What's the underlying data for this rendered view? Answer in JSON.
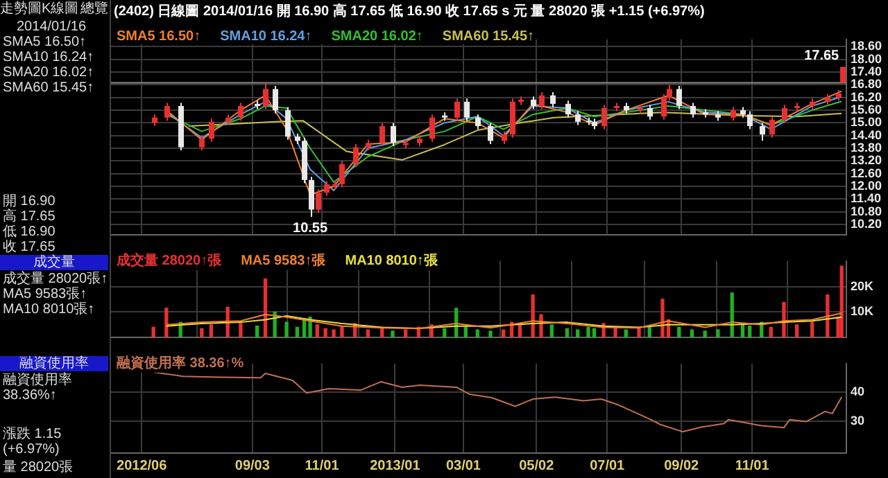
{
  "chart_data": [
    {
      "type": "other",
      "annotations": [
        "走勢圖",
        "K線圖",
        "總覽",
        "2014/01/16",
        "SMA5 16.50↑",
        "SMA10 16.24↑",
        "SMA20 16.02↑",
        "SMA60 15.45↑",
        "開 16.90",
        "高 17.65",
        "低 16.90",
        "收 17.65",
        "成交量",
        "成交量 28020張↑",
        "MA5 9583張↑",
        "MA10 8010張↑",
        "融資使用率",
        "融資使用率 38.36%↑",
        "漲跌 1.15 (+6.97%)",
        "量 28020張"
      ]
    },
    {
      "type": "candlestick",
      "title": "(2402) 日線圖 2014/01/16 開 16.90 高 17.65 低 16.90 收 17.65 s 元 量 28020 張 +1.15 (+6.97%)",
      "x": [
        "2012-06-11",
        "2012-06-22",
        "2012-07-04",
        "2012-07-22",
        "2012-07-30",
        "2012-08-13",
        "2012-08-24",
        "2012-09-07",
        "2012-09-14",
        "2012-09-22",
        "2012-10-02",
        "2012-10-11",
        "2012-10-17",
        "2012-10-22",
        "2012-10-28",
        "2012-11-04",
        "2012-11-11",
        "2012-11-18",
        "2012-11-29",
        "2012-12-10",
        "2012-12-22",
        "2012-12-31",
        "2013-01-11",
        "2013-01-22",
        "2013-02-02",
        "2013-02-13",
        "2013-02-23",
        "2013-03-03",
        "2013-03-13",
        "2013-03-24",
        "2013-04-04",
        "2013-04-11",
        "2013-04-18",
        "2013-04-29",
        "2013-05-06",
        "2013-05-15",
        "2013-05-28",
        "2013-06-06",
        "2013-06-15",
        "2013-06-20",
        "2013-06-28",
        "2013-07-08",
        "2013-07-17",
        "2013-07-28",
        "2013-08-06",
        "2013-08-17",
        "2013-08-22",
        "2013-08-31",
        "2013-09-11",
        "2013-09-22",
        "2013-10-03",
        "2013-10-15",
        "2013-10-24",
        "2013-10-30",
        "2013-11-09",
        "2013-11-17",
        "2013-11-28",
        "2013-12-09",
        "2013-12-22",
        "2014-01-04",
        "2014-01-13",
        "2014-01-16"
      ],
      "ohlc": [
        [
          15.0,
          15.4,
          14.85,
          15.25
        ],
        [
          15.25,
          15.95,
          15.1,
          15.8
        ],
        [
          15.8,
          15.95,
          13.7,
          13.85
        ],
        [
          13.85,
          14.4,
          13.7,
          14.25
        ],
        [
          14.25,
          15.2,
          14.1,
          15.05
        ],
        [
          15.05,
          15.4,
          14.9,
          15.25
        ],
        [
          15.25,
          15.95,
          15.1,
          15.8
        ],
        [
          15.9,
          16.05,
          15.65,
          15.8
        ],
        [
          15.8,
          16.9,
          15.65,
          16.6
        ],
        [
          16.6,
          16.75,
          15.45,
          15.6
        ],
        [
          15.6,
          15.75,
          14.2,
          14.35
        ],
        [
          14.35,
          14.5,
          14.0,
          14.15
        ],
        [
          14.15,
          14.3,
          12.15,
          12.3
        ],
        [
          12.3,
          12.45,
          10.55,
          10.9
        ],
        [
          10.9,
          11.85,
          10.75,
          11.7
        ],
        [
          11.7,
          12.25,
          11.55,
          12.1
        ],
        [
          12.0,
          12.25,
          11.85,
          12.1
        ],
        [
          12.1,
          13.2,
          11.95,
          13.05
        ],
        [
          13.05,
          14.0,
          12.9,
          13.85
        ],
        [
          13.85,
          14.2,
          13.7,
          14.05
        ],
        [
          14.05,
          15.0,
          13.9,
          14.85
        ],
        [
          14.85,
          15.0,
          13.9,
          14.05
        ],
        [
          13.95,
          14.2,
          13.8,
          14.05
        ],
        [
          14.05,
          14.4,
          13.9,
          14.25
        ],
        [
          14.25,
          15.4,
          14.1,
          15.25
        ],
        [
          15.35,
          15.5,
          15.1,
          15.25
        ],
        [
          15.25,
          16.15,
          15.1,
          16.0
        ],
        [
          16.0,
          16.15,
          15.1,
          15.25
        ],
        [
          15.25,
          15.4,
          14.7,
          14.85
        ],
        [
          14.85,
          15.0,
          14.0,
          14.15
        ],
        [
          14.15,
          14.6,
          14.0,
          14.45
        ],
        [
          14.45,
          16.15,
          14.3,
          16.0
        ],
        [
          16.0,
          16.25,
          15.85,
          16.1
        ],
        [
          16.1,
          16.25,
          15.65,
          15.8
        ],
        [
          15.8,
          16.45,
          15.65,
          16.3
        ],
        [
          16.3,
          16.45,
          15.75,
          15.9
        ],
        [
          15.9,
          16.05,
          15.25,
          15.4
        ],
        [
          15.4,
          15.55,
          14.9,
          15.05
        ],
        [
          15.1,
          15.25,
          14.9,
          15.05
        ],
        [
          15.05,
          15.2,
          14.7,
          14.85
        ],
        [
          14.85,
          15.85,
          14.7,
          15.7
        ],
        [
          15.7,
          15.95,
          15.55,
          15.8
        ],
        [
          15.8,
          15.95,
          15.45,
          15.6
        ],
        [
          15.6,
          15.85,
          15.45,
          15.7
        ],
        [
          15.7,
          15.85,
          15.15,
          15.3
        ],
        [
          15.3,
          16.35,
          15.15,
          16.2
        ],
        [
          16.2,
          16.8,
          16.05,
          16.6
        ],
        [
          16.6,
          16.75,
          15.65,
          15.8
        ],
        [
          15.8,
          15.95,
          15.25,
          15.4
        ],
        [
          15.5,
          15.65,
          15.25,
          15.4
        ],
        [
          15.4,
          15.55,
          15.1,
          15.25
        ],
        [
          15.25,
          15.75,
          15.1,
          15.6
        ],
        [
          15.6,
          15.75,
          15.25,
          15.4
        ],
        [
          15.4,
          15.55,
          14.7,
          14.85
        ],
        [
          14.85,
          15.0,
          14.15,
          14.45
        ],
        [
          14.45,
          15.3,
          14.3,
          15.15
        ],
        [
          15.15,
          15.85,
          15.0,
          15.7
        ],
        [
          15.7,
          15.95,
          15.55,
          15.8
        ],
        [
          15.8,
          16.15,
          15.65,
          16.0
        ],
        [
          16.0,
          16.35,
          15.85,
          16.2
        ],
        [
          16.2,
          16.55,
          16.05,
          16.4
        ],
        [
          16.9,
          17.65,
          16.9,
          17.65
        ]
      ],
      "colors": [
        "#e83030",
        "#e83030",
        "#e8e8e8",
        "#e83030",
        "#e83030",
        "#e83030",
        "#e83030",
        "#e8e8e8",
        "#e83030",
        "#e8e8e8",
        "#e8e8e8",
        "#e8e8e8",
        "#e8e8e8",
        "#e8e8e8",
        "#e83030",
        "#e83030",
        "#e83030",
        "#e83030",
        "#e83030",
        "#e83030",
        "#e83030",
        "#e8e8e8",
        "#e83030",
        "#e83030",
        "#e83030",
        "#e8e8e8",
        "#e83030",
        "#e8e8e8",
        "#e8e8e8",
        "#e8e8e8",
        "#e83030",
        "#e83030",
        "#e83030",
        "#e8e8e8",
        "#e83030",
        "#e8e8e8",
        "#e8e8e8",
        "#e8e8e8",
        "#e8e8e8",
        "#e8e8e8",
        "#e83030",
        "#e83030",
        "#e8e8e8",
        "#e83030",
        "#e8e8e8",
        "#e83030",
        "#e83030",
        "#e8e8e8",
        "#e8e8e8",
        "#e8e8e8",
        "#e8e8e8",
        "#e83030",
        "#e8e8e8",
        "#e8e8e8",
        "#e8e8e8",
        "#e83030",
        "#e83030",
        "#e83030",
        "#e83030",
        "#e83030",
        "#e83030",
        "#e83030"
      ],
      "xlim": [
        "2012-05-06",
        "2014-01-20"
      ],
      "xticks": [
        {
          "value": "2012-06-01",
          "label": null
        },
        {
          "value": "2012-09-03",
          "label": null
        },
        {
          "value": "2012-11-01",
          "label": null
        },
        {
          "value": "2013-01-02",
          "label": null
        },
        {
          "value": "2013-03-01",
          "label": null
        },
        {
          "value": "2013-05-02",
          "label": null
        },
        {
          "value": "2013-07-01",
          "label": null
        },
        {
          "value": "2013-09-02",
          "label": null
        },
        {
          "value": "2013-11-01",
          "label": null
        }
      ],
      "series": [
        {
          "name": "SMA5 16.50↑",
          "type": "line",
          "color": "#f08030",
          "x": [
            "2012-06-22",
            "2012-07-22",
            "2012-08-24",
            "2012-09-14",
            "2012-10-02",
            "2012-10-22",
            "2012-11-11",
            "2012-12-10",
            "2013-01-11",
            "2013-02-13",
            "2013-03-13",
            "2013-04-04",
            "2013-04-29",
            "2013-05-28",
            "2013-06-20",
            "2013-07-17",
            "2013-08-22",
            "2013-09-22",
            "2013-10-24",
            "2013-11-17",
            "2013-12-22",
            "2014-01-16"
          ],
          "values": [
            15.6,
            14.2,
            15.6,
            16.3,
            14.7,
            11.6,
            12.0,
            14.0,
            14.1,
            15.2,
            15.0,
            14.3,
            15.9,
            15.5,
            14.9,
            15.6,
            16.3,
            15.4,
            15.4,
            14.9,
            15.9,
            16.5
          ]
        },
        {
          "name": "SMA10 16.24↑",
          "type": "line",
          "color": "#60a0e0",
          "x": [
            "2012-06-22",
            "2012-07-22",
            "2012-08-24",
            "2012-09-14",
            "2012-10-02",
            "2012-10-22",
            "2012-11-11",
            "2012-12-10",
            "2013-01-11",
            "2013-02-13",
            "2013-03-13",
            "2013-04-04",
            "2013-04-29",
            "2013-05-28",
            "2013-06-20",
            "2013-07-17",
            "2013-08-22",
            "2013-09-22",
            "2013-10-24",
            "2013-11-17",
            "2013-12-22",
            "2014-01-16"
          ],
          "values": [
            15.5,
            14.3,
            15.4,
            16.0,
            15.2,
            12.8,
            11.8,
            13.8,
            14.2,
            15.0,
            15.3,
            14.4,
            15.8,
            15.7,
            15.0,
            15.6,
            16.0,
            15.5,
            15.4,
            14.7,
            15.8,
            16.24
          ]
        },
        {
          "name": "SMA20 16.02↑",
          "type": "line",
          "color": "#30c030",
          "x": [
            "2012-06-22",
            "2012-07-22",
            "2012-08-24",
            "2012-09-14",
            "2012-10-02",
            "2012-10-22",
            "2012-11-11",
            "2012-12-10",
            "2013-01-11",
            "2013-02-13",
            "2013-03-13",
            "2013-04-04",
            "2013-04-29",
            "2013-05-28",
            "2013-06-20",
            "2013-07-17",
            "2013-08-22",
            "2013-09-22",
            "2013-10-24",
            "2013-11-17",
            "2013-12-22",
            "2014-01-16"
          ],
          "values": [
            15.4,
            14.6,
            15.2,
            15.8,
            15.7,
            13.8,
            12.2,
            13.4,
            14.2,
            14.6,
            15.3,
            14.7,
            15.4,
            15.7,
            15.3,
            15.5,
            15.8,
            15.6,
            15.4,
            14.9,
            15.6,
            16.02
          ]
        },
        {
          "name": "SMA60 15.45↑",
          "type": "line",
          "color": "#c8c050",
          "x": [
            "2012-07-11",
            "2012-08-17",
            "2012-09-22",
            "2012-10-16",
            "2012-11-22",
            "2013-01-08",
            "2013-02-12",
            "2013-03-13",
            "2013-04-12",
            "2013-05-17",
            "2013-08-17",
            "2013-10-21",
            "2013-12-09",
            "2014-01-16"
          ],
          "values": [
            14.85,
            14.95,
            15.05,
            15.1,
            13.65,
            13.25,
            13.95,
            14.65,
            14.95,
            15.25,
            15.5,
            15.35,
            15.3,
            15.45
          ]
        }
      ],
      "ylim": [
        9.7,
        18.95
      ],
      "yticks": [
        {
          "value": 10.2,
          "label": "10.20"
        },
        {
          "value": 10.8,
          "label": "10.80"
        },
        {
          "value": 11.4,
          "label": "11.40"
        },
        {
          "value": 12,
          "label": "12.00"
        },
        {
          "value": 12.6,
          "label": "12.60"
        },
        {
          "value": 13.2,
          "label": "13.20"
        },
        {
          "value": 13.8,
          "label": "13.80"
        },
        {
          "value": 14.4,
          "label": "14.40"
        },
        {
          "value": 15,
          "label": "15.00"
        },
        {
          "value": 15.6,
          "label": "15.60"
        },
        {
          "value": 16.2,
          "label": "16.20"
        },
        {
          "value": 16.8,
          "label": "16.80"
        },
        {
          "value": 17.4,
          "label": "17.40"
        },
        {
          "value": 18,
          "label": "18.00"
        },
        {
          "value": 18.6,
          "label": "18.60"
        }
      ],
      "grid": true,
      "legend": "top left",
      "tick_labels": "y",
      "ref_lines": [
        {
          "axis": "y",
          "value": 16.9,
          "color": "#909090"
        }
      ],
      "annotations": [
        {
          "text": "10.55",
          "x": "2012-10-22",
          "y": 10.55
        },
        {
          "text": "17.65",
          "x": "2014-01-16",
          "y": 17.65
        }
      ]
    },
    {
      "type": "bar",
      "x": [
        "2012-06-11",
        "2012-06-22",
        "2012-07-04",
        "2012-07-22",
        "2012-07-30",
        "2012-08-13",
        "2012-08-24",
        "2012-09-07",
        "2012-09-14",
        "2012-09-22",
        "2012-10-02",
        "2012-10-11",
        "2012-10-17",
        "2012-10-22",
        "2012-10-28",
        "2012-11-04",
        "2012-11-11",
        "2012-11-18",
        "2012-11-29",
        "2012-12-10",
        "2012-12-22",
        "2012-12-31",
        "2013-01-11",
        "2013-01-22",
        "2013-02-02",
        "2013-02-13",
        "2013-02-23",
        "2013-03-03",
        "2013-03-13",
        "2013-03-24",
        "2013-04-04",
        "2013-04-11",
        "2013-04-18",
        "2013-04-29",
        "2013-05-06",
        "2013-05-15",
        "2013-05-28",
        "2013-06-06",
        "2013-06-15",
        "2013-06-20",
        "2013-06-28",
        "2013-07-08",
        "2013-07-17",
        "2013-07-28",
        "2013-08-06",
        "2013-08-17",
        "2013-08-22",
        "2013-08-31",
        "2013-09-11",
        "2013-09-22",
        "2013-10-03",
        "2013-10-15",
        "2013-10-24",
        "2013-10-30",
        "2013-11-09",
        "2013-11-17",
        "2013-11-28",
        "2013-12-09",
        "2013-12-22",
        "2014-01-04",
        "2014-01-13",
        "2014-01-16"
      ],
      "series": [
        {
          "name": "成交量 28020↑張",
          "type": "bar",
          "values": [
            4000,
            11500,
            6000,
            3500,
            5000,
            11900,
            5500,
            4500,
            23000,
            10000,
            6000,
            4000,
            7000,
            8000,
            5000,
            3500,
            3000,
            4500,
            5500,
            3000,
            4000,
            2500,
            3000,
            4000,
            5000,
            3500,
            11500,
            4000,
            3000,
            2500,
            3000,
            6000,
            5000,
            16700,
            9000,
            5000,
            3500,
            3000,
            4000,
            3500,
            5500,
            4000,
            3000,
            3500,
            4000,
            15000,
            7000,
            4000,
            3000,
            2500,
            3000,
            17500,
            5000,
            4500,
            6000,
            4000,
            13700,
            5000,
            6000,
            16700,
            8000,
            28020
          ],
          "colors": [
            "#e83030",
            "#e83030",
            "#20b020",
            "#e83030",
            "#e83030",
            "#e83030",
            "#e83030",
            "#20b020",
            "#e83030",
            "#20b020",
            "#20b020",
            "#20b020",
            "#20b020",
            "#20b020",
            "#e83030",
            "#e83030",
            "#e83030",
            "#e83030",
            "#e83030",
            "#e83030",
            "#e83030",
            "#20b020",
            "#e83030",
            "#e83030",
            "#e83030",
            "#20b020",
            "#20b020",
            "#20b020",
            "#20b020",
            "#20b020",
            "#e83030",
            "#e83030",
            "#e83030",
            "#e83030",
            "#e83030",
            "#20b020",
            "#20b020",
            "#20b020",
            "#20b020",
            "#20b020",
            "#e83030",
            "#e83030",
            "#20b020",
            "#e83030",
            "#20b020",
            "#e83030",
            "#e83030",
            "#20b020",
            "#20b020",
            "#20b020",
            "#20b020",
            "#20b020",
            "#20b020",
            "#20b020",
            "#20b020",
            "#e83030",
            "#e83030",
            "#e83030",
            "#e83030",
            "#e83030",
            "#e83030",
            "#e83030"
          ]
        },
        {
          "name": "MA5 9583↑張",
          "type": "line",
          "color": "#f08030",
          "x": [
            "2012-06-22",
            "2012-07-22",
            "2012-08-24",
            "2012-09-14",
            "2012-10-02",
            "2012-10-22",
            "2012-11-18",
            "2012-12-22",
            "2013-01-22",
            "2013-02-23",
            "2013-03-24",
            "2013-04-29",
            "2013-05-28",
            "2013-06-28",
            "2013-07-28",
            "2013-08-22",
            "2013-09-22",
            "2013-10-15",
            "2013-11-09",
            "2013-11-28",
            "2013-12-22",
            "2014-01-16"
          ],
          "values": [
            5000,
            6000,
            6500,
            9000,
            8000,
            6500,
            4500,
            3800,
            3500,
            5500,
            3800,
            6500,
            5500,
            4000,
            3800,
            6500,
            4000,
            6000,
            5000,
            6500,
            7000,
            9583
          ]
        },
        {
          "name": "MA10 8010↑張",
          "type": "line",
          "color": "#e8e040",
          "x": [
            "2012-06-22",
            "2012-07-22",
            "2012-08-24",
            "2012-09-14",
            "2012-10-02",
            "2012-10-22",
            "2012-11-18",
            "2012-12-22",
            "2013-01-22",
            "2013-02-23",
            "2013-03-24",
            "2013-04-29",
            "2013-05-28",
            "2013-06-28",
            "2013-07-28",
            "2013-08-22",
            "2013-09-22",
            "2013-10-15",
            "2013-11-09",
            "2013-11-28",
            "2013-12-22",
            "2014-01-16"
          ],
          "values": [
            4500,
            5500,
            6000,
            7000,
            8500,
            7000,
            5500,
            4000,
            3600,
            4500,
            4500,
            5500,
            6000,
            4500,
            4000,
            5000,
            5000,
            5000,
            5500,
            6000,
            6500,
            8010
          ]
        }
      ],
      "xlim": [
        "2012-05-06",
        "2014-01-20"
      ],
      "xticks": [
        {
          "value": "2012-06-01",
          "label": null
        },
        {
          "value": "2012-09-03",
          "label": null
        },
        {
          "value": "2012-11-01",
          "label": null
        },
        {
          "value": "2013-01-02",
          "label": null
        },
        {
          "value": "2013-03-01",
          "label": null
        },
        {
          "value": "2013-05-02",
          "label": null
        },
        {
          "value": "2013-07-01",
          "label": null
        },
        {
          "value": "2013-09-02",
          "label": null
        },
        {
          "value": "2013-11-01",
          "label": null
        }
      ],
      "ylim": [
        0,
        30000
      ],
      "yticks": [
        {
          "value": 10000,
          "label": "10K"
        },
        {
          "value": 20000,
          "label": "20K"
        }
      ],
      "grid": true,
      "legend": "top left",
      "tick_labels": "y"
    },
    {
      "type": "line",
      "series": [
        {
          "name": "融資使用率 38.36↑%",
          "color": "#c07050",
          "x": [
            "2012-06-11",
            "2012-07-06",
            "2012-08-06",
            "2012-09-10",
            "2012-09-14",
            "2012-10-07",
            "2012-10-19",
            "2012-11-07",
            "2012-12-04",
            "2012-12-21",
            "2013-01-08",
            "2013-01-23",
            "2013-02-23",
            "2013-03-06",
            "2013-03-25",
            "2013-04-14",
            "2013-04-29",
            "2013-05-18",
            "2013-06-11",
            "2013-06-26",
            "2013-07-11",
            "2013-08-07",
            "2013-08-15",
            "2013-09-03",
            "2013-09-19",
            "2013-10-08",
            "2013-10-12",
            "2013-11-09",
            "2013-11-28",
            "2013-12-03",
            "2013-12-17",
            "2014-01-02",
            "2014-01-08",
            "2014-01-16"
          ],
          "values": [
            47.0,
            45.6,
            45.3,
            45.1,
            46.6,
            44.2,
            39.8,
            41.3,
            40.8,
            43.7,
            41.8,
            42.5,
            41.8,
            39.4,
            38.2,
            35.2,
            37.7,
            38.4,
            37.1,
            37.7,
            35.6,
            30.6,
            28.9,
            26.4,
            28.0,
            29.2,
            30.6,
            28.5,
            27.8,
            30.6,
            29.9,
            33.4,
            32.7,
            38.36
          ]
        }
      ],
      "xlim": [
        "2012-05-06",
        "2014-01-20"
      ],
      "xticks": [
        {
          "value": "2012-06-01",
          "label": "2012/06"
        },
        {
          "value": "2012-09-03",
          "label": "09/03"
        },
        {
          "value": "2012-11-01",
          "label": "11/01"
        },
        {
          "value": "2013-01-02",
          "label": "2013/01"
        },
        {
          "value": "2013-03-01",
          "label": "03/01"
        },
        {
          "value": "2013-05-02",
          "label": "05/02"
        },
        {
          "value": "2013-07-01",
          "label": "07/01"
        },
        {
          "value": "2013-09-02",
          "label": "09/02"
        },
        {
          "value": "2013-11-01",
          "label": "11/01"
        }
      ],
      "ylim": [
        19,
        50
      ],
      "yticks": [
        30,
        40
      ],
      "grid": true,
      "legend": "top left"
    }
  ]
}
